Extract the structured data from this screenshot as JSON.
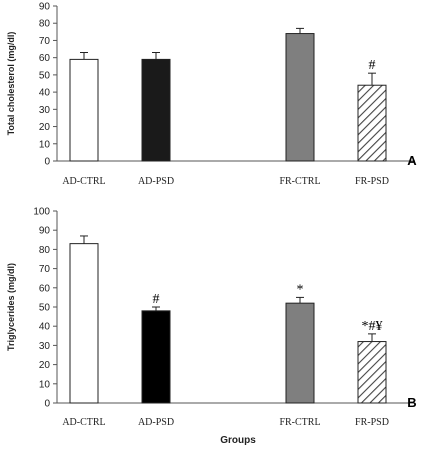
{
  "chart_data": [
    {
      "type": "bar",
      "panel_label": "A",
      "ylabel": "Total cholesterol (mg/dl)",
      "xlabel": "",
      "ylim": [
        0,
        90
      ],
      "yticks": [
        0,
        10,
        20,
        30,
        40,
        50,
        60,
        70,
        80,
        90
      ],
      "categories": [
        "AD-CTRL",
        "AD-PSD",
        "FR-CTRL",
        "FR-PSD"
      ],
      "values": [
        59,
        59,
        74,
        44
      ],
      "errors": [
        4,
        4,
        3,
        7
      ],
      "annotations": [
        "",
        "",
        "",
        "#"
      ],
      "bar_colors": [
        "#ffffff",
        "#1a1a1a",
        "#7f7f7f",
        "hatch"
      ],
      "grid": false
    },
    {
      "type": "bar",
      "panel_label": "B",
      "ylabel": "Triglycerides (mg/dl)",
      "xlabel": "Groups",
      "ylim": [
        0,
        100
      ],
      "yticks": [
        0,
        10,
        20,
        30,
        40,
        50,
        60,
        70,
        80,
        90,
        100
      ],
      "categories": [
        "AD-CTRL",
        "AD-PSD",
        "FR-CTRL",
        "FR-PSD"
      ],
      "values": [
        83,
        48,
        52,
        32
      ],
      "errors": [
        4,
        2,
        3,
        4
      ],
      "annotations": [
        "",
        "#",
        "*",
        "*#¥"
      ],
      "bar_colors": [
        "#ffffff",
        "#000000",
        "#7f7f7f",
        "hatch"
      ],
      "grid": false
    }
  ]
}
